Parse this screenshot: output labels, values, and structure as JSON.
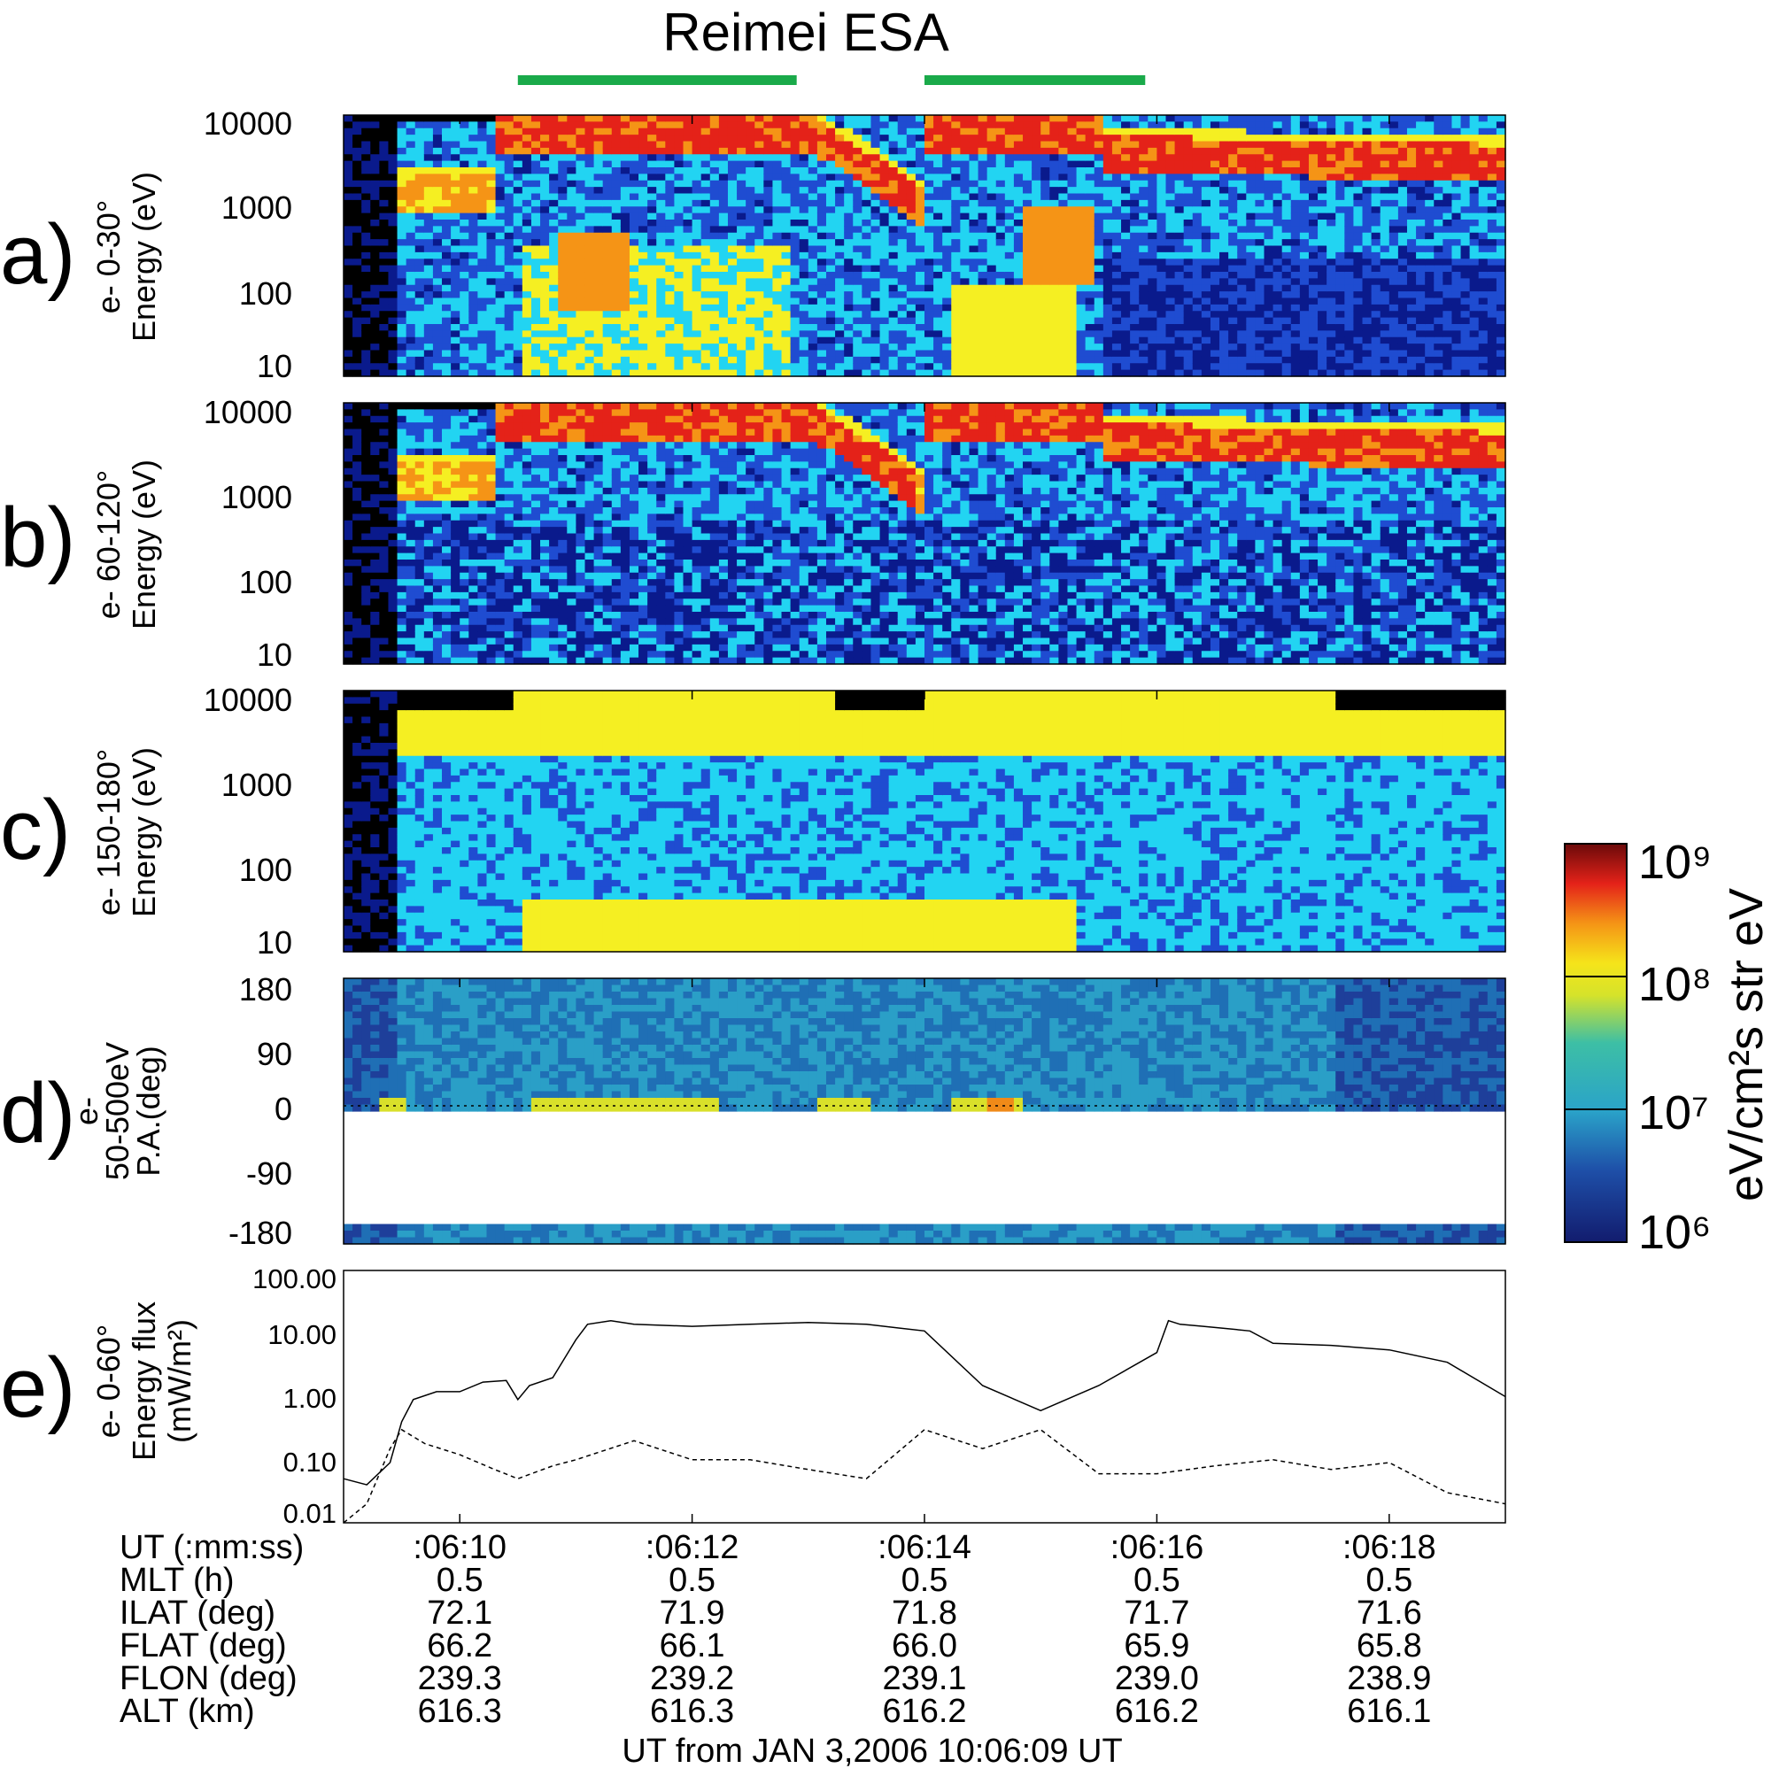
{
  "title": "Reimei ESA",
  "green_bar_color": "#1aaa4a",
  "green_bars": [
    {
      "from": "10:06:10.5",
      "to": "10:06:12.9"
    },
    {
      "from": "10:06:14.0",
      "to": "10:06:15.9"
    }
  ],
  "colors": {
    "black": "#000000",
    "navy": "#0a1a8c",
    "blue": "#1f4cd1",
    "cyan": "#22d4f2",
    "yellow": "#f5ef22",
    "orange": "#f59416",
    "red": "#e42219",
    "darkred": "#7a0b0b"
  },
  "panels": [
    {
      "letter": "a)",
      "ylabel_lines": [
        "e- 0-30°",
        "Energy (eV)"
      ],
      "ytick_labels": [
        "10000",
        "1000",
        "100",
        "10"
      ]
    },
    {
      "letter": "b)",
      "ylabel_lines": [
        "e- 60-120°",
        "Energy (eV)"
      ],
      "ytick_labels": [
        "10000",
        "1000",
        "100",
        "10"
      ]
    },
    {
      "letter": "c)",
      "ylabel_lines": [
        "e- 150-180°",
        "Energy (eV)"
      ],
      "ytick_labels": [
        "10000",
        "1000",
        "100",
        "10"
      ]
    },
    {
      "letter": "d)",
      "ylabel_lines": [
        "e-",
        "50-500eV",
        "P.A.(deg)"
      ],
      "ytick_labels": [
        "180",
        "90",
        "0",
        "-90",
        "-180"
      ]
    },
    {
      "letter": "e)",
      "ylabel_lines": [
        "e- 0-60°",
        "Energy flux",
        "(mW/m²)"
      ],
      "ytick_labels": [
        "100.00",
        "10.00",
        "1.00",
        "0.10",
        "0.01"
      ]
    }
  ],
  "colorbar": {
    "label": "eV/cm²s str eV",
    "tick_labels": [
      "10⁹",
      "10⁸",
      "10⁷",
      "10⁶"
    ],
    "scale": "log",
    "range": [
      1000000,
      1000000000
    ]
  },
  "footer": {
    "row_labels": [
      "UT  (:mm:ss)",
      "MLT  (h)",
      "ILAT  (deg)",
      "FLAT (deg)",
      "FLON  (deg)",
      "ALT  (km)"
    ],
    "columns": [
      [
        ":06:10",
        "0.5",
        "72.1",
        "66.2",
        "239.3",
        "616.3"
      ],
      [
        ":06:12",
        "0.5",
        "71.9",
        "66.1",
        "239.2",
        "616.3"
      ],
      [
        ":06:14",
        "0.5",
        "71.8",
        "66.0",
        "239.1",
        "616.2"
      ],
      [
        ":06:16",
        "0.5",
        "71.7",
        "65.9",
        "239.0",
        "616.2"
      ],
      [
        ":06:18",
        "0.5",
        "71.6",
        "65.8",
        "238.9",
        "616.1"
      ]
    ],
    "xlabel": "UT from JAN  3,2006  10:06:09 UT"
  },
  "chart_data": [
    {
      "type": "heatmap",
      "panel": "a",
      "xlabel": "UT",
      "ylabel": "Energy (eV)",
      "yscale": "log",
      "ylim": [
        10,
        10000
      ],
      "xlim": [
        "10:06:09",
        "10:06:19"
      ],
      "features": [
        {
          "desc": "intense flux (~1e8) at 1-10 keV",
          "from": "10:06:10.3",
          "to": "10:06:13.0"
        },
        {
          "desc": "inverted-V dip near 1 keV",
          "at": "10:06:13.5"
        },
        {
          "desc": "intense flux at 1-10 keV",
          "from": "10:06:14.0",
          "to": "10:06:18.9"
        }
      ]
    },
    {
      "type": "heatmap",
      "panel": "b",
      "xlabel": "UT",
      "ylabel": "Energy (eV)",
      "yscale": "log",
      "ylim": [
        10,
        10000
      ]
    },
    {
      "type": "heatmap",
      "panel": "c",
      "xlabel": "UT",
      "ylabel": "Energy (eV)",
      "yscale": "log",
      "ylim": [
        10,
        10000
      ]
    },
    {
      "type": "heatmap",
      "panel": "d",
      "xlabel": "UT",
      "ylabel": "P.A.(deg)",
      "ylim": [
        -180,
        180
      ],
      "features": [
        {
          "desc": "field-aligned enhancements near 0 deg",
          "at": [
            "10:06:11.1",
            "10:06:13.3",
            "10:06:15.2"
          ]
        }
      ]
    },
    {
      "type": "line",
      "panel": "e",
      "ylabel": "Energy flux (mW/m²)",
      "yscale": "log",
      "ylim": [
        0.01,
        100
      ],
      "x_label": "UT (s after 10:06:09)",
      "series": [
        {
          "style": "solid",
          "x": [
            0,
            0.2,
            0.4,
            0.5,
            0.6,
            0.8,
            1.0,
            1.2,
            1.4,
            1.5,
            1.6,
            1.8,
            2.0,
            2.1,
            2.3,
            2.5,
            3.0,
            3.5,
            4.0,
            4.5,
            5.0,
            5.5,
            6.0,
            6.5,
            7.0,
            7.1,
            7.2,
            7.4,
            7.6,
            7.8,
            8.0,
            8.5,
            9.0,
            9.5,
            10.0
          ],
          "y": [
            0.05,
            0.04,
            0.09,
            0.4,
            0.9,
            1.2,
            1.2,
            1.7,
            1.8,
            0.9,
            1.5,
            2.0,
            8.0,
            14,
            16,
            14,
            13,
            14,
            15,
            14,
            11,
            1.5,
            0.6,
            1.5,
            5,
            16,
            14,
            13,
            12,
            11,
            7,
            6.5,
            5.5,
            3.5,
            1.0
          ]
        },
        {
          "style": "dashed",
          "x": [
            0,
            0.2,
            0.4,
            0.5,
            0.7,
            1.0,
            1.3,
            1.5,
            1.8,
            2.0,
            2.5,
            3.0,
            3.5,
            4.0,
            4.5,
            5.0,
            5.5,
            6.0,
            6.5,
            7.0,
            7.5,
            8.0,
            8.5,
            9.0,
            9.5,
            10.0
          ],
          "y": [
            0.01,
            0.02,
            0.15,
            0.3,
            0.18,
            0.12,
            0.07,
            0.05,
            0.08,
            0.1,
            0.2,
            0.1,
            0.1,
            0.07,
            0.05,
            0.3,
            0.15,
            0.3,
            0.06,
            0.06,
            0.08,
            0.1,
            0.07,
            0.09,
            0.03,
            0.02
          ]
        }
      ]
    }
  ]
}
